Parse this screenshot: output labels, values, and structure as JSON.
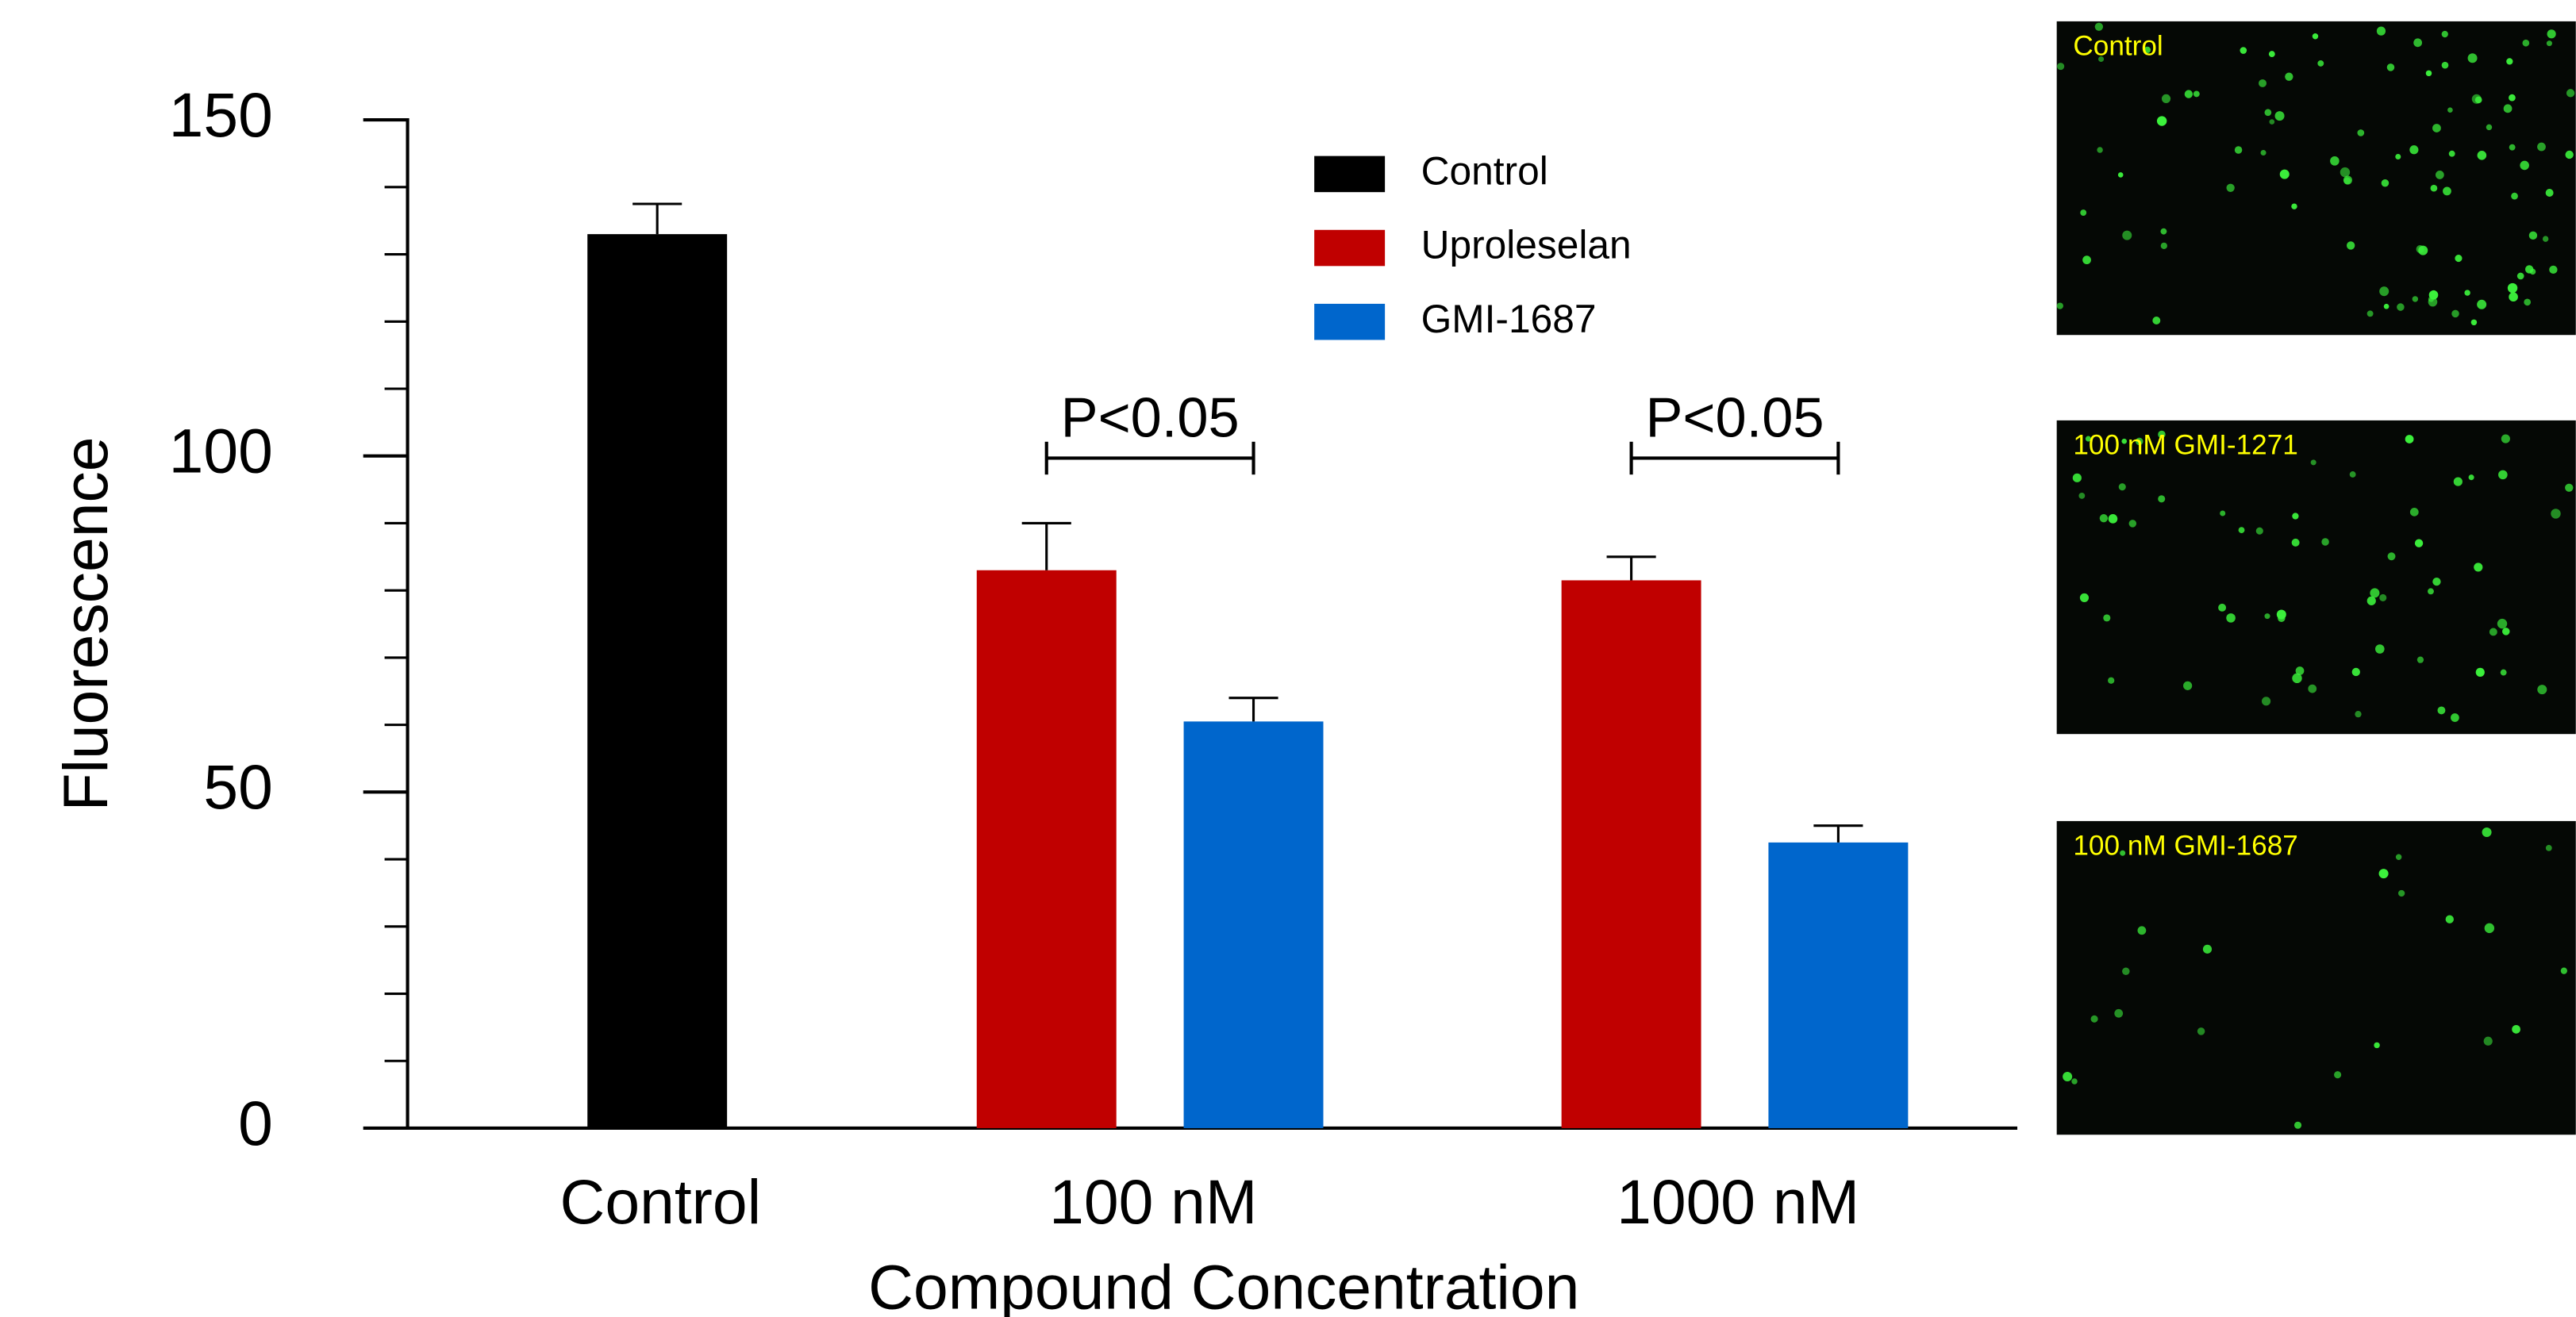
{
  "chart_data": {
    "type": "bar",
    "y_label": "Fluorescence",
    "x_label": "Compound Concentration",
    "categories": [
      "Control",
      "100 nM",
      "1000 nM"
    ],
    "series": [
      {
        "name": "Control",
        "color": "#000000",
        "values": [
          133,
          null,
          null
        ],
        "errors": [
          4.5,
          null,
          null
        ]
      },
      {
        "name": "Uproleselan",
        "color": "#c00000",
        "values": [
          null,
          83,
          81.5
        ],
        "errors": [
          null,
          7,
          3.5
        ]
      },
      {
        "name": "GMI-1687",
        "color": "#0066cc",
        "values": [
          null,
          60.5,
          42.5
        ],
        "errors": [
          null,
          3.5,
          2.5
        ]
      }
    ],
    "ylim": [
      0,
      150
    ],
    "yticks": [
      0,
      50,
      100,
      150
    ],
    "minor_yticks": [
      10,
      20,
      30,
      40,
      60,
      70,
      80,
      90,
      110,
      120,
      130,
      140
    ],
    "annotations": [
      "P<0.05",
      "P<0.05"
    ]
  },
  "images": [
    {
      "label": "Control"
    },
    {
      "label": "100 nM GMI-1271"
    },
    {
      "label": "100 nM GMI-1687"
    }
  ]
}
